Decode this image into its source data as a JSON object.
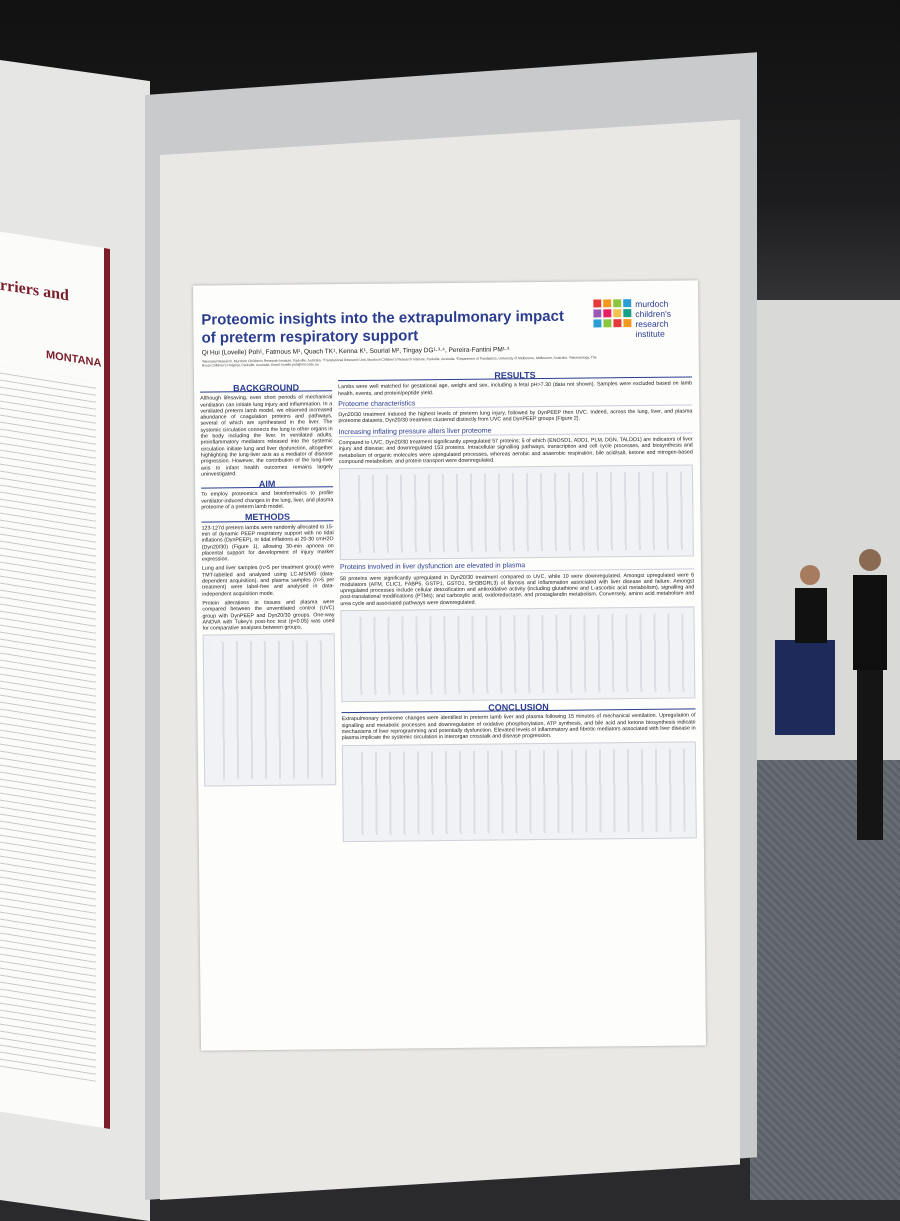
{
  "poster": {
    "title": "Proteomic insights into the extrapulmonary impact of preterm respiratory support",
    "authors": "Qi Hui (Lovelle) Poh¹, Fatmous M¹, Quach TK¹, Kenna K¹, Sourial M², Tingay DG¹·³·⁴, Pereira-Fantini PM¹·³",
    "affiliations": "¹Neonatal Research, Murdoch Children's Research Institute, Parkville, Australia. ²Translational Research Unit, Murdoch Children's Research Institute, Parkville, Australia. ³Department of Paediatrics, University of Melbourne, Melbourne, Australia. ⁴Neonatology, The Royal Children's Hospital, Parkville, Australia. Email: lovelle.poh@mcri.edu.au",
    "logo": "murdoch children's research institute",
    "left_column": [
      {
        "heading": "BACKGROUND",
        "paragraphs": [
          "Although lifesaving, even short periods of mechanical ventilation can initiate lung injury and inflammation. In a ventilated preterm lamb model, we observed increased abundance of coagulation proteins and pathways, several of which are synthesised in the liver. The systemic circulation connects the lung to other organs in the body including the liver. In ventilated adults, proinflammatory mediators released into the systemic circulation initiate lung and liver dysfunction, altogether highlighting the lung-liver axis as a mediator of disease progression. However, the contribution of the lung-liver axis to infant health outcomes remains largely uninvestigated."
        ]
      },
      {
        "heading": "AIM",
        "paragraphs": [
          "To employ proteomics and bioinformatics to profile ventilator-induced changes in the lung, liver, and plasma proteome of a preterm lamb model."
        ]
      },
      {
        "heading": "METHODS",
        "paragraphs": [
          "123-127d preterm lambs were randomly allocated to 15-min of dynamic PEEP respiratory support with no tidal inflations (DynPEEP), or tidal inflations at 20-30 cmH2O (Dyn20/30) (Figure 1), allowing 30-min apnoea on placental support for development of injury marker expression.",
          "Lung and liver samples (n>5 per treatment group) were TMT-labelled and analysed using LC-MS/MS (data-dependent acquisition), and plasma samples (n>5 per treatment) were label-free and analysed in data-independent acquisition mode.",
          "Protein alterations in tissues and plasma were compared between the unventilated control (UVC) group with DynPEEP and Dyn20/30 groups. One-way ANOVA with Tukey's post-hoc test (p<0.05) was used for comparative analyses between groups."
        ]
      }
    ],
    "right_column": [
      {
        "heading": "RESULTS",
        "paragraphs": [
          "Lambs were well matched for gestational age, weight and sex, including a fetal pH>7.30 (data not shown). Samples were excluded based on lamb health, events, and protein/peptide yield."
        ]
      },
      {
        "heading": "Proteome characteristics",
        "paragraphs": [
          "Dyn20/30 treatment induced the highest levels of preterm lung injury, followed by DynPEEP then UVC. Indeed, across the lung, liver, and plasma proteome datasets, Dyn20/30 treatment clustered distinctly from UVC and DynPEEP groups (Figure 2)."
        ]
      },
      {
        "heading": "Increasing inflating pressure alters liver proteome",
        "paragraphs": [
          "Compared to UVC, Dyn20/30 treatment significantly upregulated 57 proteins; 5 of which (ENOSD1, ADD1, PLM, DGN, TALDO1) are indicators of liver injury and disease; and downregulated 153 proteins. Intracellular signalling pathways, transcription and cell cycle processes, and biosynthesis and metabolism of organic molecules were upregulated processes, whereas aerobic and anaerobic respiration; bile acid/salt, ketone and nitrogen-based compound metabolism; and protein transport were downregulated."
        ]
      },
      {
        "heading": "Proteins involved in liver dysfunction are elevated in plasma",
        "paragraphs": [
          "58 proteins were significantly upregulated in Dyn20/30 treatment compared to UVC, while 10 were downregulated. Amongst upregulated were 6 modulators (AFM, CLIC1, FABP5, GSTP1, GSTO1, SH3BGRL3) of fibrosis and inflammation associated with liver disease and failure. Amongst upregulated processes include cellular detoxification and antioxidative activity (including glutathione and L-ascorbic acid metabolism), signalling and post-translational modifications (PTMs); and carboxylic acid, oxidoreductase, and prostaglandin metabolism. Conversely, amino acid metabolism and urea cycle and associated pathways were downregulated."
        ]
      },
      {
        "heading": "CONCLUSION",
        "paragraphs": [
          "Extrapulmonary proteome changes were identified in preterm lamb liver and plasma following 15 minutes of mechanical ventilation. Upregulation of signalling and metabolic processes and downregulation of oxidative phosphorylation, ATP synthesis, and bile acid and ketone biosynthesis indicate mechanisms of liver reprogramming and potentially dysfunction. Elevated levels of inflammatory and fibrotic mediators associated with liver disease in plasma implicate the systemic circulation in interorgan crosstalk and disease progression."
        ]
      }
    ]
  },
  "neighbor_poster": {
    "heading": "rriers and",
    "logo": "MONTANA"
  }
}
